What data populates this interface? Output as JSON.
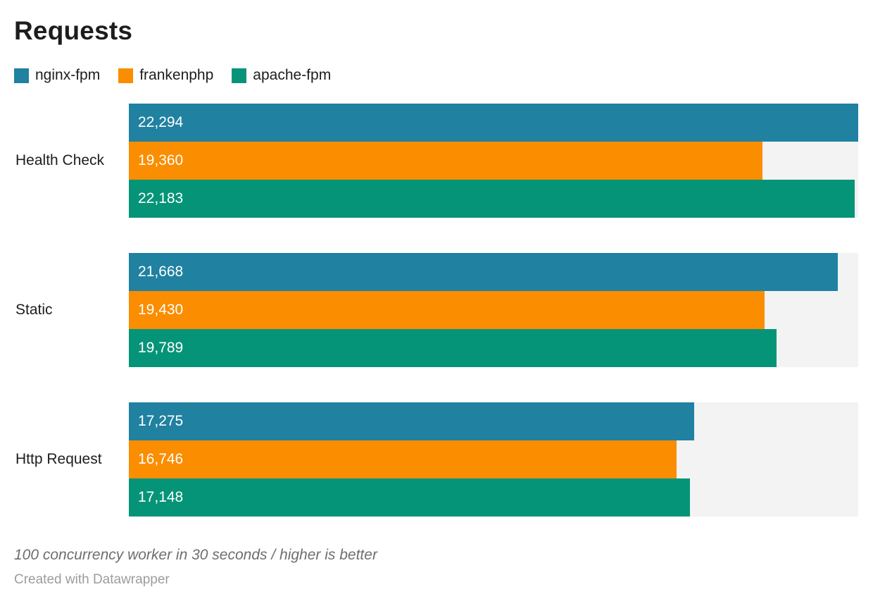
{
  "chart_data": {
    "type": "bar",
    "orientation": "horizontal",
    "title": "Requests",
    "categories": [
      "Health Check",
      "Static",
      "Http Request"
    ],
    "series": [
      {
        "name": "nginx-fpm",
        "color": "#2081a1",
        "values": [
          22294,
          21668,
          17275
        ],
        "labels": [
          "22,294",
          "21,668",
          "17,275"
        ]
      },
      {
        "name": "frankenphp",
        "color": "#fa8d00",
        "values": [
          19360,
          19430,
          16746
        ],
        "labels": [
          "19,360",
          "19,430",
          "16,746"
        ]
      },
      {
        "name": "apache-fpm",
        "color": "#069478",
        "values": [
          22183,
          19789,
          17148
        ],
        "labels": [
          "22,183",
          "19,789",
          "17,148"
        ]
      }
    ],
    "xlim": [
      0,
      22294
    ],
    "grid": false,
    "legend_position": "top-left",
    "track_color": "#f3f3f3",
    "value_label_color": "#ffffff",
    "notes": "100 concurrency worker in 30 seconds / higher is better",
    "attribution": "Created with Datawrapper"
  }
}
